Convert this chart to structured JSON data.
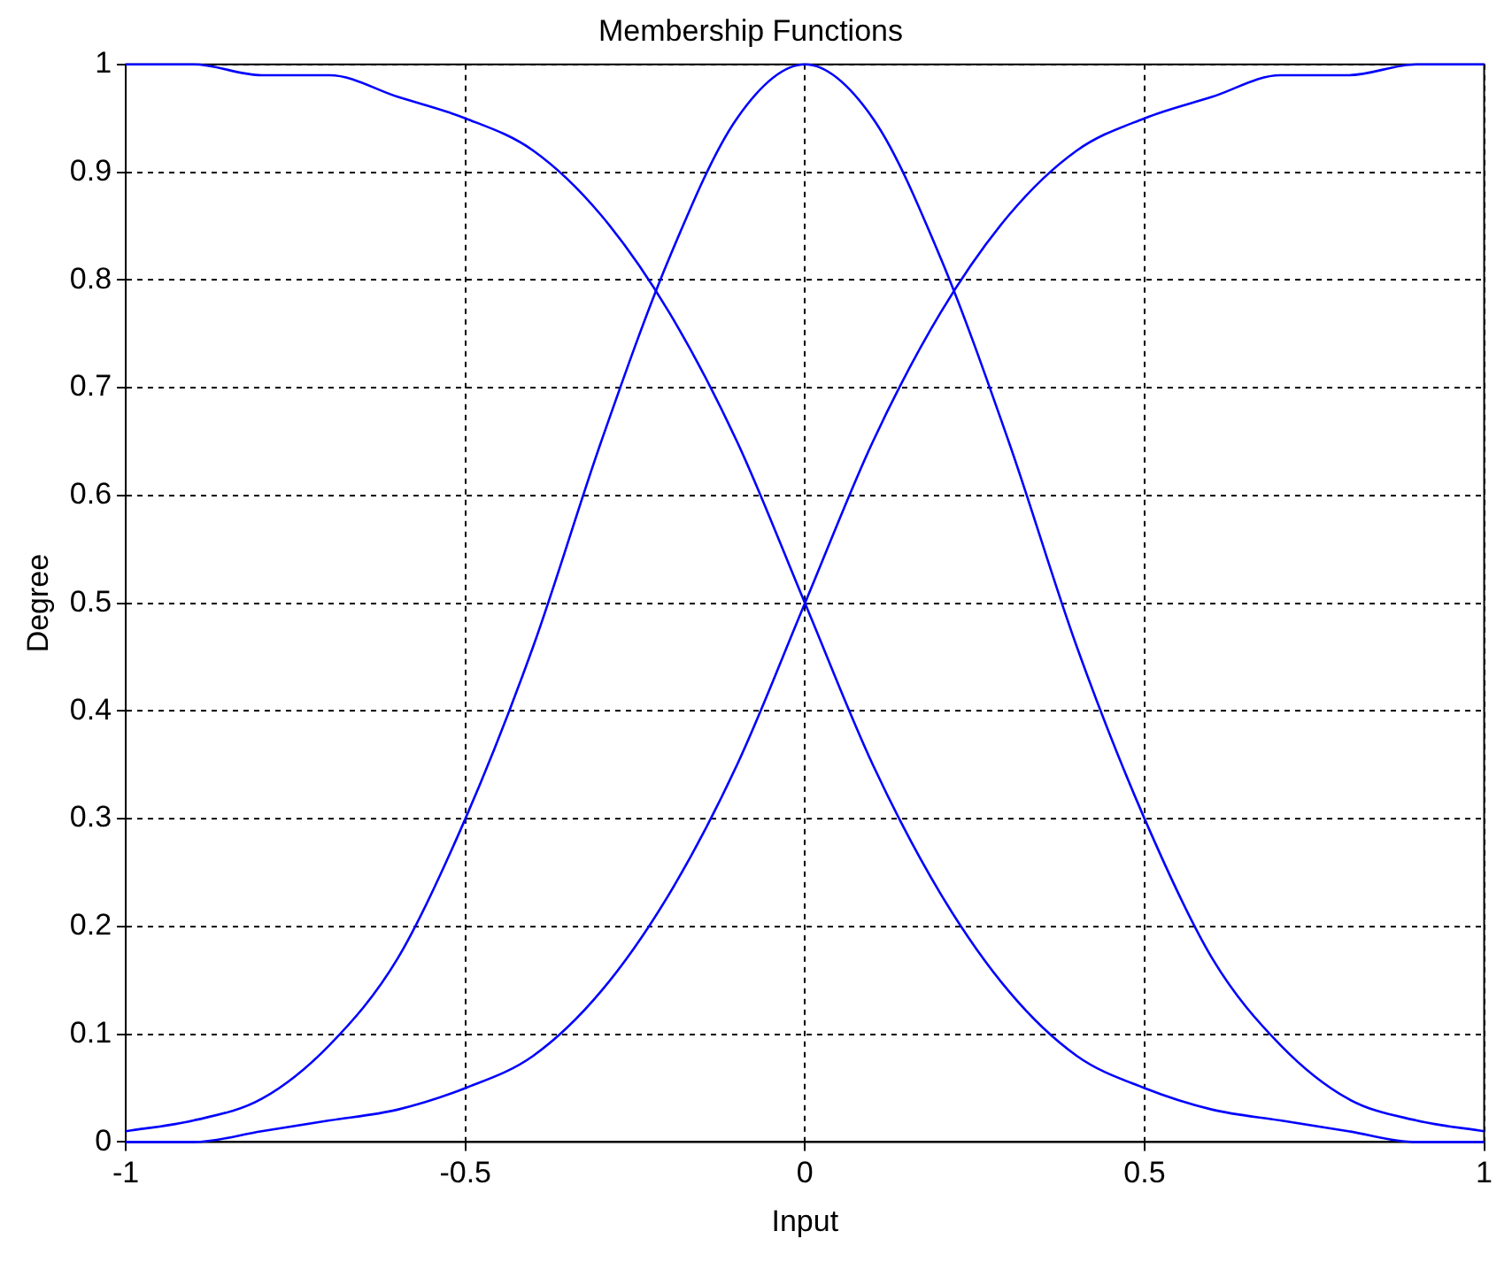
{
  "chart_data": {
    "type": "line",
    "title": "Membership Functions",
    "xlabel": "Input",
    "ylabel": "Degree",
    "x": [
      -1,
      -0.9,
      -0.8,
      -0.7,
      -0.6,
      -0.5,
      -0.4,
      -0.3,
      -0.2,
      -0.1,
      0,
      0.1,
      0.2,
      0.3,
      0.4,
      0.5,
      0.6,
      0.7,
      0.8,
      0.9,
      1
    ],
    "series": [
      {
        "color": "#0000ff",
        "values": [
          1,
          1,
          0.99,
          0.99,
          0.97,
          0.95,
          0.92,
          0.86,
          0.77,
          0.65,
          0.5,
          0.35,
          0.23,
          0.14,
          0.08,
          0.05,
          0.03,
          0.02,
          0.01,
          0,
          0
        ]
      },
      {
        "color": "#0000ff",
        "values": [
          0.01,
          0.02,
          0.04,
          0.09,
          0.17,
          0.3,
          0.46,
          0.65,
          0.82,
          0.95,
          1,
          0.95,
          0.82,
          0.65,
          0.46,
          0.3,
          0.17,
          0.09,
          0.04,
          0.02,
          0.01
        ]
      },
      {
        "color": "#0000ff",
        "values": [
          0,
          0,
          0.01,
          0.02,
          0.03,
          0.05,
          0.08,
          0.14,
          0.23,
          0.35,
          0.5,
          0.65,
          0.77,
          0.86,
          0.92,
          0.95,
          0.97,
          0.99,
          0.99,
          1,
          1
        ]
      }
    ],
    "xlim": [
      -1,
      1
    ],
    "xticks": [
      -1,
      -0.5,
      0,
      0.5,
      1
    ],
    "ylim": [
      0,
      1
    ],
    "yticks": [
      0,
      0.1,
      0.2,
      0.3,
      0.4,
      0.5,
      0.6,
      0.7,
      0.8,
      0.9,
      1
    ],
    "grid": true,
    "legend": false,
    "marker": "none",
    "line_style": "solid"
  }
}
